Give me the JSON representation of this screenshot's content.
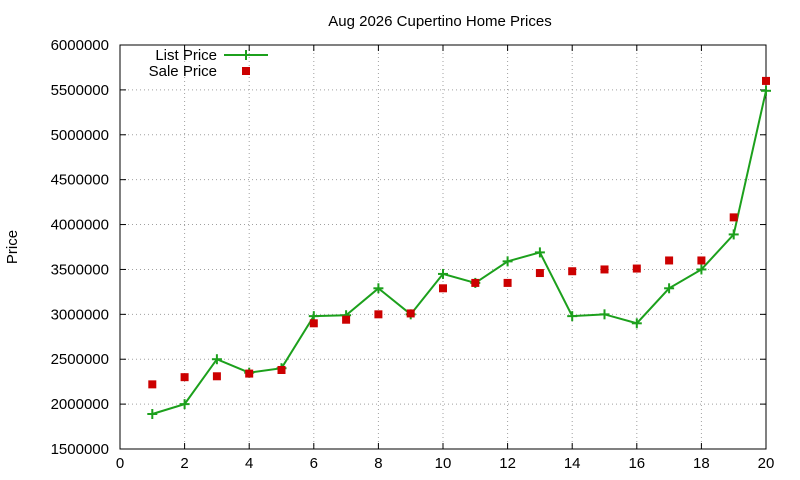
{
  "chart_data": {
    "type": "line",
    "title": "Aug 2026 Cupertino Home Prices",
    "xlabel": "",
    "ylabel": "Price",
    "xlim": [
      0,
      20
    ],
    "ylim": [
      1500000,
      6000000
    ],
    "x_ticks": [
      0,
      2,
      4,
      6,
      8,
      10,
      12,
      14,
      16,
      18,
      20
    ],
    "y_ticks": [
      1500000,
      2000000,
      2500000,
      3000000,
      3500000,
      4000000,
      4500000,
      5000000,
      5500000,
      6000000
    ],
    "grid": true,
    "legend_position": "top-left",
    "series": [
      {
        "name": "List Price",
        "style": "line+cross",
        "color": "#1ca01c",
        "x": [
          1,
          2,
          3,
          4,
          5,
          6,
          7,
          8,
          9,
          10,
          11,
          12,
          13,
          14,
          15,
          16,
          17,
          18,
          19,
          20
        ],
        "values": [
          1890000,
          2000000,
          2500000,
          2350000,
          2400000,
          2980000,
          2990000,
          3290000,
          3000000,
          3450000,
          3350000,
          3590000,
          3690000,
          2980000,
          3000000,
          2900000,
          3290000,
          3500000,
          3890000,
          5490000
        ]
      },
      {
        "name": "Sale Price",
        "style": "square",
        "color": "#cc0000",
        "x": [
          1,
          2,
          3,
          4,
          5,
          6,
          7,
          8,
          9,
          10,
          11,
          12,
          13,
          14,
          15,
          16,
          17,
          18,
          19,
          20
        ],
        "values": [
          2220000,
          2300000,
          2310000,
          2340000,
          2380000,
          2900000,
          2940000,
          3000000,
          3010000,
          3290000,
          3350000,
          3350000,
          3460000,
          3480000,
          3500000,
          3510000,
          3600000,
          3600000,
          4080000,
          5600000
        ]
      }
    ]
  }
}
